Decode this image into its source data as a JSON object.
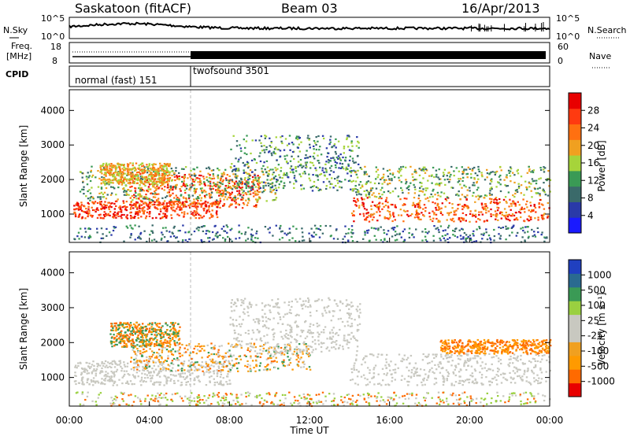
{
  "header": {
    "station": "Saskatoon (fitACF)",
    "beam": "Beam 03",
    "date": "16/Apr/2013"
  },
  "summary_panels": {
    "nsky_label": "N.Sky",
    "nsearch_label": "N.Search",
    "noise_ticks": [
      "10^5",
      "10^0"
    ],
    "freq_label_1": "Freq.",
    "freq_label_2": "[MHz]",
    "freq_ticks": [
      "18",
      "8"
    ],
    "nave_label": "Nave",
    "nave_ticks": [
      "60",
      "0"
    ],
    "cpid_label": "CPID",
    "cpid_segments": [
      "normal (fast) 151",
      "twofsound 3501"
    ]
  },
  "colors": {
    "power_scale": [
      "#1a1aff",
      "#2a3aa8",
      "#3a6a6a",
      "#3a9a55",
      "#a6d43a",
      "#f0a020",
      "#ff7010",
      "#ff3a10",
      "#e80000"
    ],
    "velocity_scale": [
      "#e80000",
      "#ff6a00",
      "#ff9a00",
      "#f0a020",
      "#c8c8c0",
      "#c8c8c0",
      "#9ad040",
      "#3a9a55",
      "#2a6a90",
      "#2040c0"
    ]
  },
  "chart_data": [
    {
      "type": "heatmap",
      "quantity": "power",
      "ylabel": "Slant Range [km]",
      "xlabel": "",
      "ylim": [
        180,
        4600
      ],
      "yticks": [
        "1000",
        "2000",
        "3000",
        "4000"
      ],
      "colorbar_label": "Power [dB]",
      "colorbar_ticks": [
        "4",
        "8",
        "12",
        "16",
        "20",
        "24",
        "28"
      ],
      "colorbar_range": [
        0,
        32
      ]
    },
    {
      "type": "heatmap",
      "quantity": "velocity",
      "ylabel": "Slant Range [km]",
      "xlabel": "Time UT",
      "ylim": [
        180,
        4600
      ],
      "yticks": [
        "1000",
        "2000",
        "3000",
        "4000"
      ],
      "xticks": [
        "00:00",
        "04:00",
        "08:00",
        "12:00",
        "16:00",
        "20:00",
        "00:00"
      ],
      "xlim_hours": [
        0,
        24
      ],
      "colorbar_label": "Velocity [m s⁻¹]",
      "colorbar_ticks": [
        "1000",
        "500",
        "100",
        "25",
        "-25",
        "-100",
        "-500",
        "-1000"
      ]
    }
  ]
}
